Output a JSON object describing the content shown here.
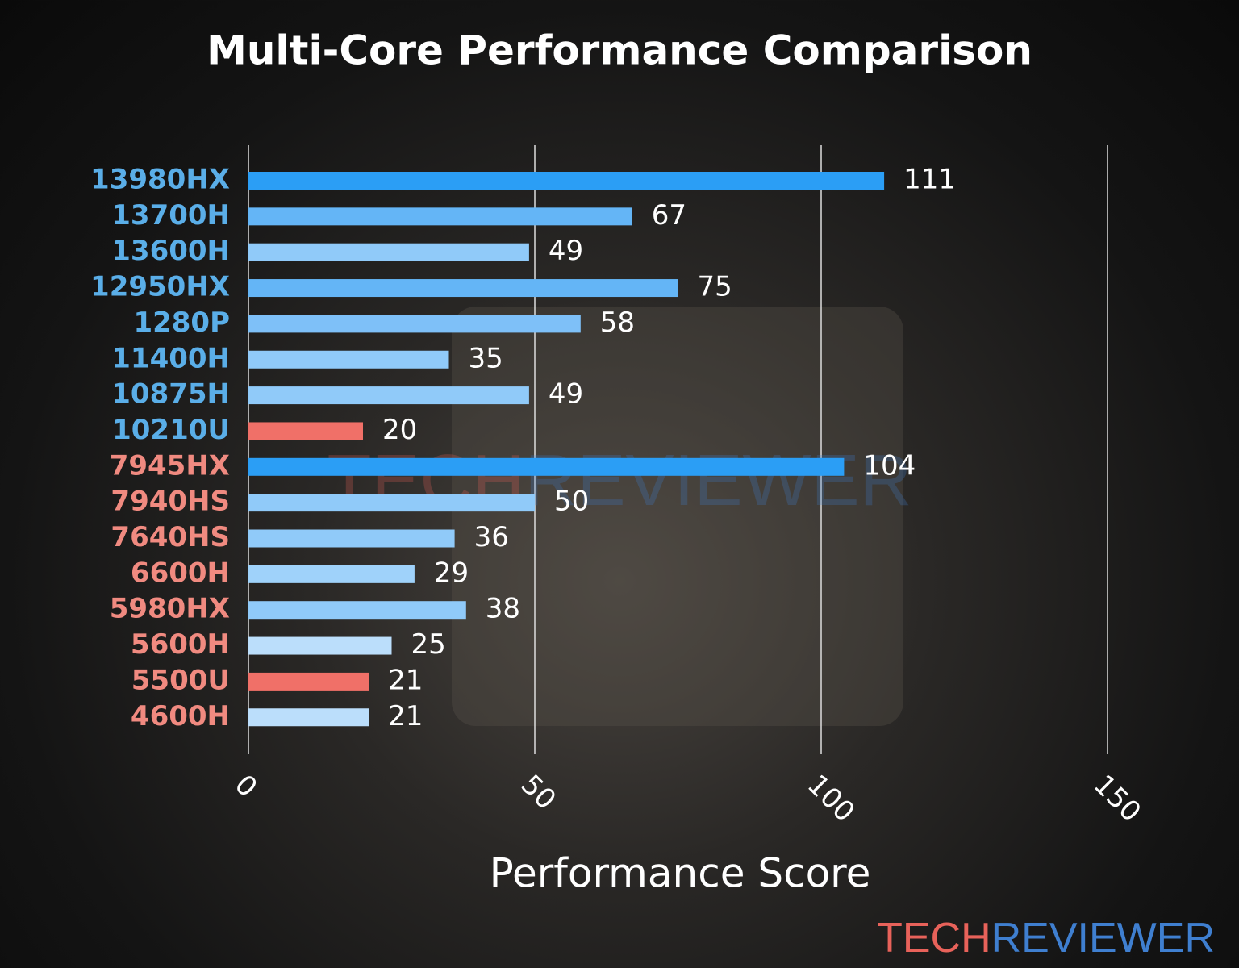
{
  "chart_data": {
    "type": "barh",
    "title": "Multi-Core Performance Comparison",
    "xlabel": "Performance Score",
    "categories": [
      "13980HX",
      "13700H",
      "13600H",
      "12950HX",
      "1280P",
      "11400H",
      "10875H",
      "10210U",
      "7945HX",
      "7940HS",
      "7640HS",
      "6600H",
      "5980HX",
      "5600H",
      "5500U",
      "4600H"
    ],
    "category_colors": [
      "#5aaee8",
      "#5aaee8",
      "#5aaee8",
      "#5aaee8",
      "#5aaee8",
      "#5aaee8",
      "#5aaee8",
      "#5aaee8",
      "#f08a80",
      "#f08a80",
      "#f08a80",
      "#f08a80",
      "#f08a80",
      "#f08a80",
      "#f08a80",
      "#f08a80"
    ],
    "values": [
      111,
      67,
      49,
      75,
      58,
      35,
      49,
      20,
      104,
      50,
      36,
      29,
      38,
      25,
      21,
      21
    ],
    "colors": [
      "#2b9ef5",
      "#64b5f6",
      "#90caf9",
      "#64b5f6",
      "#7ec0f8",
      "#90caf9",
      "#90caf9",
      "#f07068",
      "#2b9ef5",
      "#90caf9",
      "#90caf9",
      "#9fd2fa",
      "#90caf9",
      "#bbdefb",
      "#f07068",
      "#bbdefb"
    ],
    "xlim": [
      0,
      150
    ],
    "xticks": [
      0,
      50,
      100,
      150
    ],
    "grid": true,
    "logo": [
      {
        "text": "TECH",
        "color": "#e8625a"
      },
      {
        "text": "REVIEWER",
        "color": "#3f7fd0"
      }
    ]
  }
}
